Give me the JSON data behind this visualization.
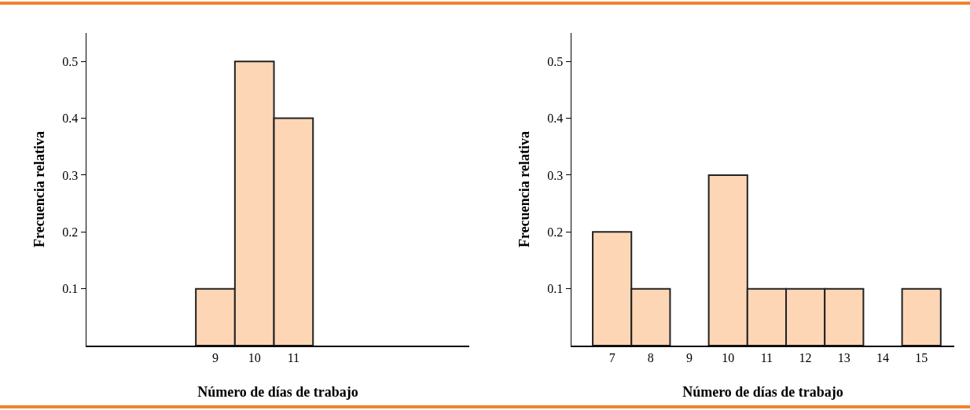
{
  "chart_data": [
    {
      "type": "histogram",
      "xlabel": "Número de días de trabajo",
      "ylabel": "Frecuencia relativa",
      "bins": [
        8.5,
        9.5,
        10.5,
        11.5
      ],
      "values": [
        0.1,
        0.5,
        0.4
      ],
      "color": "#fdd6b5",
      "xlim": [
        5.7,
        15.5
      ],
      "xticks": [
        9,
        10,
        11
      ],
      "ylim": [
        0,
        0.55
      ],
      "yticks": [
        0.1,
        0.2,
        0.3,
        0.4,
        0.5
      ],
      "grid": false,
      "legend": false
    },
    {
      "type": "histogram",
      "xlabel": "Número de días de trabajo",
      "ylabel": "Frecuencia relativa",
      "bins": [
        6.5,
        7.5,
        8.5,
        9.5,
        10.5,
        11.5,
        12.5,
        13.5,
        14.5,
        15.5
      ],
      "values": [
        0.2,
        0.1,
        0,
        0.3,
        0.1,
        0.1,
        0.1,
        0,
        0.1
      ],
      "color": "#fdd6b5",
      "xlim": [
        5.95,
        15.85
      ],
      "xticks": [
        7,
        8,
        9,
        10,
        11,
        12,
        13,
        14,
        15
      ],
      "ylim": [
        0,
        0.55
      ],
      "yticks": [
        0.1,
        0.2,
        0.3,
        0.4,
        0.5
      ],
      "grid": false,
      "legend": false
    }
  ]
}
